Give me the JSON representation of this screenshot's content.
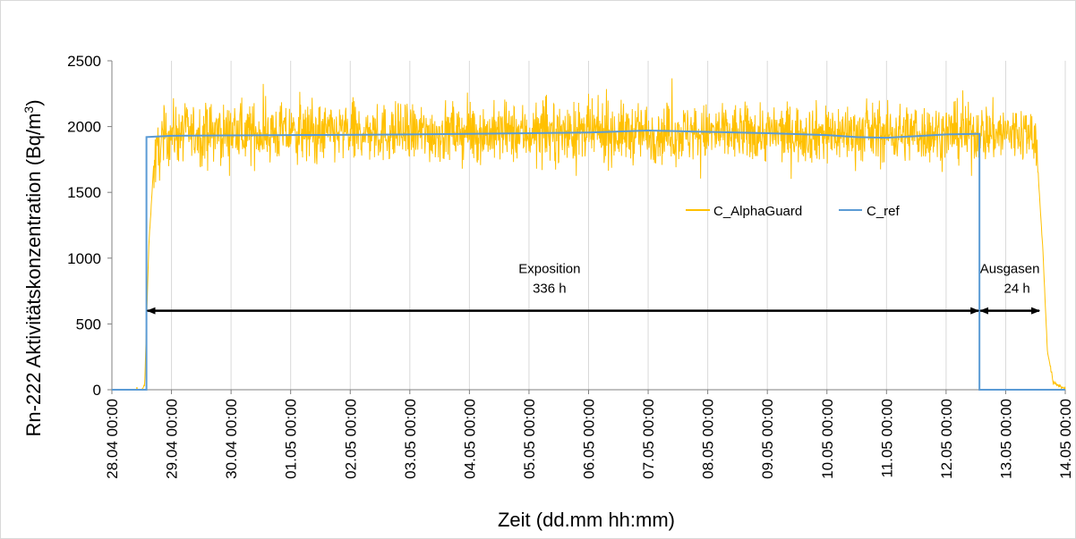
{
  "chart_data": {
    "type": "line",
    "title": "",
    "xlabel": "Zeit (dd.mm hh:mm)",
    "ylabel_main": "Rn-222 Aktivitätskonzentration (Bq/m",
    "ylabel_sup": "3",
    "ylabel_close": ")",
    "ylim": [
      0,
      2500
    ],
    "yticks": [
      "0",
      "500",
      "1000",
      "1500",
      "2000",
      "2500"
    ],
    "xlim_days": [
      0,
      16
    ],
    "xticks": [
      "28.04 00:00",
      "29.04 00:00",
      "30.04 00:00",
      "01.05 00:00",
      "02.05 00:00",
      "03.05 00:00",
      "04.05 00:00",
      "05.05 00:00",
      "06.05 00:00",
      "07.05 00:00",
      "08.05 00:00",
      "09.05 00:00",
      "10.05 00:00",
      "11.05 00:00",
      "12.05 00:00",
      "13.05 00:00",
      "14.05 00:00"
    ],
    "grid": "vertical",
    "legend_position": "center-right",
    "series": [
      {
        "name": "C_AlphaGuard",
        "color": "#FFC000",
        "description_points": {
          "x_days": [
            0.0,
            0.5,
            0.55,
            0.62,
            0.7,
            0.85,
            1.0,
            15.0,
            15.5,
            15.62,
            15.7,
            15.8,
            16.0
          ],
          "y": [
            0,
            0,
            30,
            1100,
            1700,
            1900,
            1950,
            1950,
            1950,
            1100,
            300,
            50,
            10
          ]
        },
        "mean_plateau": 1950,
        "noise_amplitude": 200
      },
      {
        "name": "C_ref",
        "color": "#5B9BD5",
        "x_days": [
          0.0,
          0.58,
          0.58,
          1.0,
          3.0,
          5.0,
          7.0,
          8.0,
          9.0,
          10.0,
          11.0,
          12.0,
          12.5,
          13.0,
          14.0,
          14.52,
          14.56,
          14.56,
          16.0
        ],
        "y": [
          0,
          0,
          1920,
          1930,
          1935,
          1940,
          1950,
          1955,
          1970,
          1960,
          1950,
          1935,
          1920,
          1915,
          1940,
          1945,
          1945,
          0,
          0
        ]
      }
    ],
    "annotations": [
      {
        "label_line1": "Exposition",
        "label_line2": "336 h",
        "x_start_day": 0.58,
        "x_end_day": 14.56,
        "y": 600
      },
      {
        "label_line1": "Ausgasen",
        "label_line2": "24 h",
        "x_start_day": 14.56,
        "x_end_day": 15.58,
        "y": 600
      }
    ]
  }
}
